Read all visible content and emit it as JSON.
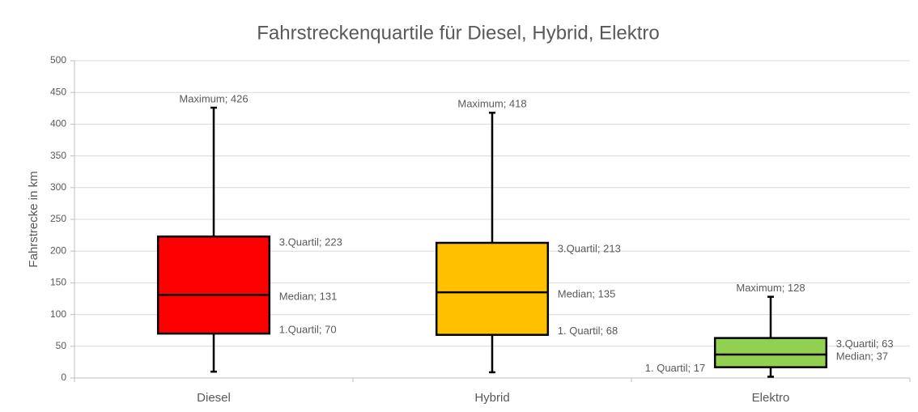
{
  "chart_data": {
    "type": "box",
    "title": "Fahrstreckenquartile für Diesel, Hybrid, Elektro",
    "y_label": "Fahrstrecke in km",
    "categories": [
      "Diesel",
      "Hybrid",
      "Elektro"
    ],
    "colors": [
      "#ff0000",
      "#ffc000",
      "#92d050"
    ],
    "min": [
      10,
      9,
      2
    ],
    "q1": [
      70,
      68,
      17
    ],
    "median": [
      131,
      135,
      37
    ],
    "q3": [
      223,
      213,
      63
    ],
    "max": [
      426,
      418,
      128
    ],
    "q1_labels": [
      "1.Quartil; 70",
      "1. Quartil; 68",
      "1. Quartil; 17"
    ],
    "median_labels": [
      "Median; 131",
      "Median; 135",
      "Median; 37"
    ],
    "q3_labels": [
      "3.Quartil; 223",
      "3.Quartil; 213",
      "3.Quartil; 63"
    ],
    "max_labels": [
      "Maximum; 426",
      "Maximum; 418",
      "Maximum; 128"
    ],
    "ylim": [
      0,
      500
    ],
    "yticks": [
      0,
      50,
      100,
      150,
      200,
      250,
      300,
      350,
      400,
      450,
      500
    ],
    "grid": true
  }
}
